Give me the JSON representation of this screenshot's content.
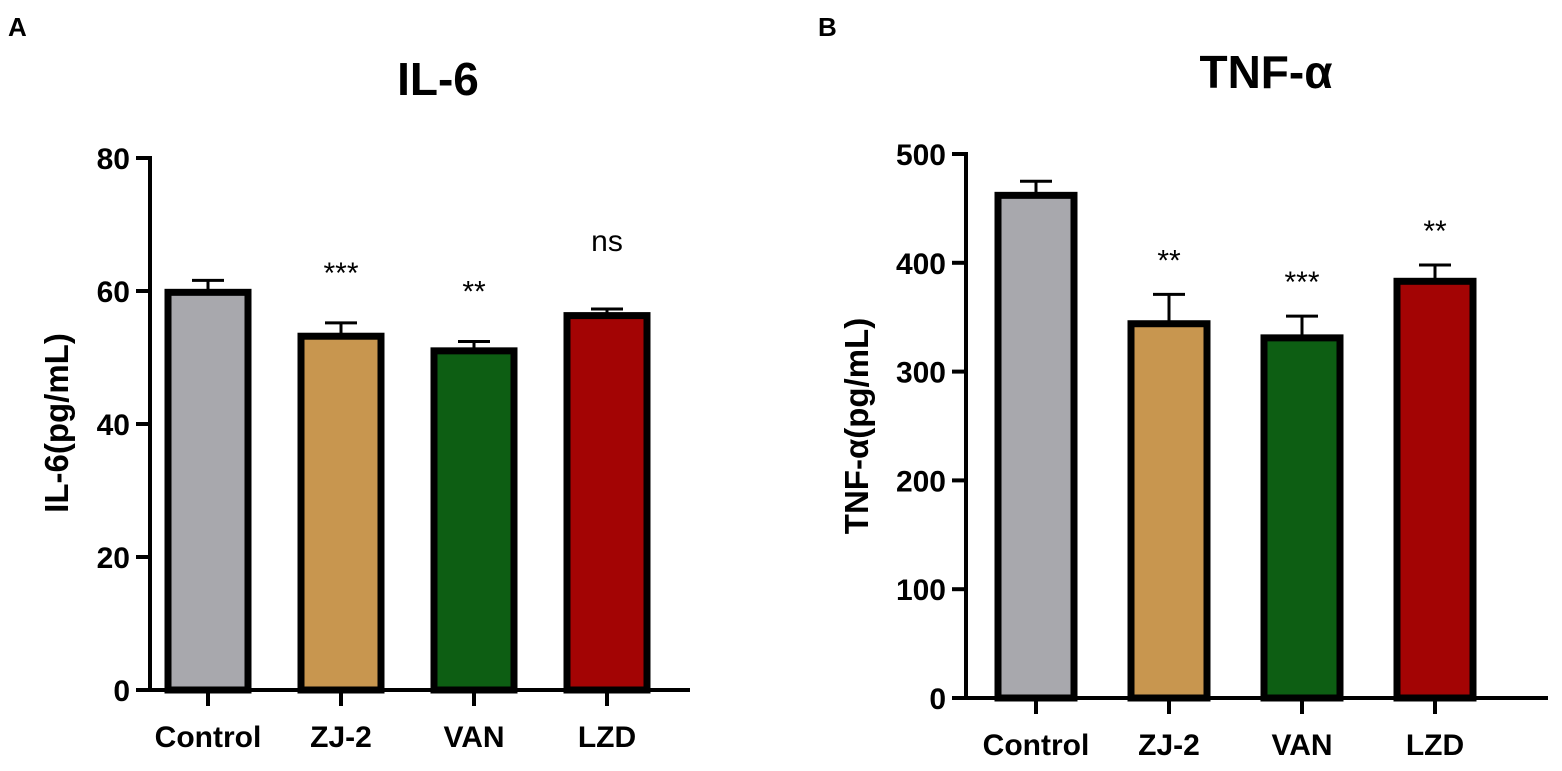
{
  "chart_data": [
    {
      "panel": "A",
      "type": "bar",
      "title": "IL-6",
      "xlabel": "",
      "ylabel": "IL-6(pg/mL)",
      "ylim": [
        0,
        80
      ],
      "yticks": [
        0,
        20,
        40,
        60,
        80
      ],
      "categories": [
        "Control",
        "ZJ-2",
        "VAN",
        "LZD"
      ],
      "values": [
        59.8,
        53.2,
        51.0,
        56.3
      ],
      "errors": [
        1.8,
        2.0,
        1.4,
        1.0
      ],
      "significance": [
        "",
        "***",
        "**",
        "ns"
      ],
      "colors": [
        "#a8a8ad",
        "#c8964f",
        "#0d5e13",
        "#a30404"
      ]
    },
    {
      "panel": "B",
      "type": "bar",
      "title": "TNF-α",
      "xlabel": "",
      "ylabel": "TNF-α(pg/mL)",
      "ylim": [
        0,
        500
      ],
      "yticks": [
        0,
        100,
        200,
        300,
        400,
        500
      ],
      "categories": [
        "Control",
        "ZJ-2",
        "VAN",
        "LZD"
      ],
      "values": [
        462,
        344,
        331,
        383
      ],
      "errors": [
        13,
        27,
        20,
        15
      ],
      "significance": [
        "",
        "**",
        "***",
        "**"
      ],
      "colors": [
        "#a8a8ad",
        "#c8964f",
        "#0d5e13",
        "#a30404"
      ]
    }
  ]
}
